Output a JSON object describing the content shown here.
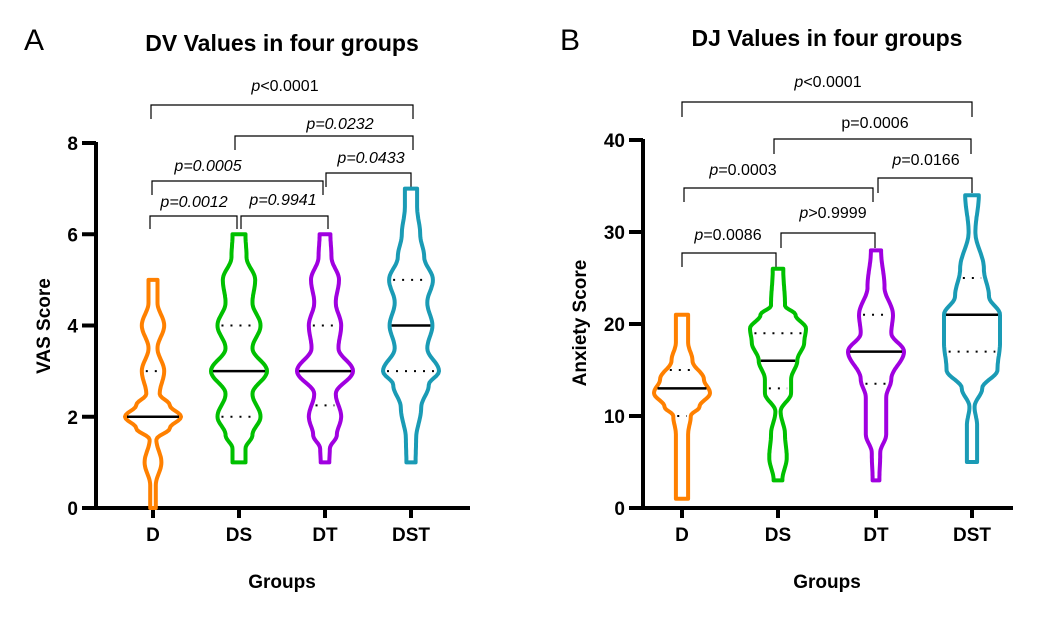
{
  "chart_data": [
    {
      "type": "violin",
      "panel": "A",
      "title": "DV Values in four groups",
      "xlabel": "Groups",
      "ylabel": "VAS Score",
      "ylim": [
        0,
        8
      ],
      "yticks": [
        0,
        2,
        4,
        6,
        8
      ],
      "grid": false,
      "categories": [
        "D",
        "DS",
        "DT",
        "DST"
      ],
      "series": [
        {
          "name": "D",
          "color": "#FF8000",
          "min": 0,
          "max": 5,
          "median": 2,
          "q1": 2,
          "q3": 3,
          "density": [
            [
              0,
              0.5
            ],
            [
              0.5,
              0.5
            ],
            [
              1,
              1.5
            ],
            [
              1.5,
              0.6
            ],
            [
              1.75,
              3
            ],
            [
              2,
              5
            ],
            [
              2.25,
              3
            ],
            [
              2.5,
              1.2
            ],
            [
              3,
              2
            ],
            [
              3.5,
              0.8
            ],
            [
              4,
              2
            ],
            [
              4.5,
              0.8
            ],
            [
              5,
              0.8
            ]
          ]
        },
        {
          "name": "DS",
          "color": "#00C000",
          "min": 1,
          "max": 6,
          "median": 3,
          "q1": 2,
          "q3": 4,
          "density": [
            [
              1,
              1.2
            ],
            [
              1.3,
              1.2
            ],
            [
              1.6,
              2.5
            ],
            [
              2,
              4
            ],
            [
              2.5,
              2.5
            ],
            [
              3,
              5.2
            ],
            [
              3.5,
              2.5
            ],
            [
              4,
              4
            ],
            [
              4.5,
              2.5
            ],
            [
              5,
              3
            ],
            [
              5.5,
              1.4
            ],
            [
              6,
              1.2
            ]
          ]
        },
        {
          "name": "DT",
          "color": "#A000E0",
          "min": 1,
          "max": 6,
          "median": 3,
          "q1": 2.25,
          "q3": 4,
          "density": [
            [
              1,
              0.8
            ],
            [
              1.3,
              0.9
            ],
            [
              1.6,
              2.2
            ],
            [
              2,
              3
            ],
            [
              2.5,
              2
            ],
            [
              3,
              5.2
            ],
            [
              3.5,
              2.5
            ],
            [
              4,
              3
            ],
            [
              4.5,
              2
            ],
            [
              5,
              2.6
            ],
            [
              5.5,
              1.2
            ],
            [
              6,
              1
            ]
          ]
        },
        {
          "name": "DST",
          "color": "#1A9BB5",
          "min": 1,
          "max": 7,
          "median": 4,
          "q1": 3,
          "q3": 5,
          "density": [
            [
              1,
              0.9
            ],
            [
              1.5,
              1
            ],
            [
              2.2,
              2
            ],
            [
              2.7,
              3.5
            ],
            [
              3,
              5.5
            ],
            [
              3.5,
              3.2
            ],
            [
              4,
              4.2
            ],
            [
              4.5,
              3.2
            ],
            [
              5,
              4.3
            ],
            [
              5.5,
              2.6
            ],
            [
              6,
              1.8
            ],
            [
              6.6,
              1.2
            ],
            [
              7,
              1.2
            ]
          ]
        }
      ],
      "comparisons": [
        {
          "from": "D",
          "to": "DS",
          "label_prefix": "p",
          "label_rest": "=0.0012",
          "italic_all": true
        },
        {
          "from": "DS",
          "to": "DT",
          "label_prefix": "p",
          "label_rest": "=0.9941",
          "italic_all": true
        },
        {
          "from": "D",
          "to": "DT",
          "label_prefix": "p",
          "label_rest": "=0.0005",
          "italic_all": true
        },
        {
          "from": "DT",
          "to": "DST",
          "label_prefix": "p",
          "label_rest": "=0.0433",
          "italic_all": true
        },
        {
          "from": "DS",
          "to": "DST",
          "label_prefix": "p",
          "label_rest": "=0.0232",
          "italic_all": true
        },
        {
          "from": "D",
          "to": "DST",
          "label_prefix": "p",
          "label_rest": "<0.0001",
          "italic_all": false
        }
      ]
    },
    {
      "type": "violin",
      "panel": "B",
      "title": "DJ Values in four groups",
      "xlabel": "Groups",
      "ylabel": "Anxiety Score",
      "ylim": [
        0,
        40
      ],
      "yticks": [
        0,
        10,
        20,
        30,
        40
      ],
      "grid": false,
      "categories": [
        "D",
        "DS",
        "DT",
        "DST"
      ],
      "series": [
        {
          "name": "D",
          "color": "#FF8000",
          "min": 1,
          "max": 21,
          "median": 13,
          "q1": 10,
          "q3": 15,
          "density": [
            [
              1,
              0.7
            ],
            [
              3,
              0.7
            ],
            [
              8,
              0.7
            ],
            [
              10,
              1
            ],
            [
              11,
              2
            ],
            [
              12.5,
              3.2
            ],
            [
              14,
              2.5
            ],
            [
              16,
              1.2
            ],
            [
              18,
              0.7
            ],
            [
              21,
              0.7
            ]
          ]
        },
        {
          "name": "DS",
          "color": "#00C000",
          "min": 3,
          "max": 26,
          "median": 16,
          "q1": 13,
          "q3": 19,
          "density": [
            [
              3,
              0.5
            ],
            [
              5.5,
              1
            ],
            [
              8,
              0.8
            ],
            [
              10.5,
              0.3
            ],
            [
              12.5,
              1.5
            ],
            [
              14,
              1.5
            ],
            [
              16,
              2.2
            ],
            [
              18,
              3
            ],
            [
              19.5,
              3.2
            ],
            [
              21,
              2
            ],
            [
              22,
              0.8
            ],
            [
              26,
              0.6
            ]
          ]
        },
        {
          "name": "DT",
          "color": "#A000E0",
          "min": 3,
          "max": 28,
          "median": 17,
          "q1": 13.5,
          "q3": 21,
          "density": [
            [
              3,
              0.4
            ],
            [
              6,
              0.5
            ],
            [
              8,
              1.2
            ],
            [
              12,
              1.2
            ],
            [
              14,
              1.8
            ],
            [
              17,
              3.3
            ],
            [
              19,
              1.8
            ],
            [
              21,
              2
            ],
            [
              24,
              1
            ],
            [
              28,
              0.6
            ]
          ]
        },
        {
          "name": "DST",
          "color": "#1A9BB5",
          "min": 5,
          "max": 34,
          "median": 21,
          "q1": 17,
          "q3": 25,
          "density": [
            [
              5,
              0.6
            ],
            [
              9,
              0.6
            ],
            [
              11,
              0.3
            ],
            [
              13,
              1.2
            ],
            [
              15,
              3
            ],
            [
              18,
              3.3
            ],
            [
              21,
              3.3
            ],
            [
              23,
              2
            ],
            [
              26,
              1.4
            ],
            [
              30,
              0.4
            ],
            [
              34,
              0.8
            ]
          ]
        }
      ],
      "comparisons": [
        {
          "from": "D",
          "to": "DS",
          "label_prefix": "p",
          "label_rest": "=0.0086",
          "italic_all": false
        },
        {
          "from": "DS",
          "to": "DT",
          "label_prefix": "p",
          "label_rest": ">0.9999",
          "italic_all": false
        },
        {
          "from": "D",
          "to": "DT",
          "label_prefix": "p",
          "label_rest": "=0.0003",
          "italic_all": false
        },
        {
          "from": "DT",
          "to": "DST",
          "label_prefix": "p",
          "label_rest": "=0.0166",
          "italic_all": false
        },
        {
          "from": "DS",
          "to": "DST",
          "label_prefix": "",
          "label_rest": "p=0.0006",
          "italic_all": false
        },
        {
          "from": "D",
          "to": "DST",
          "label_prefix": "p",
          "label_rest": "<0.0001",
          "italic_all": false
        }
      ]
    }
  ]
}
